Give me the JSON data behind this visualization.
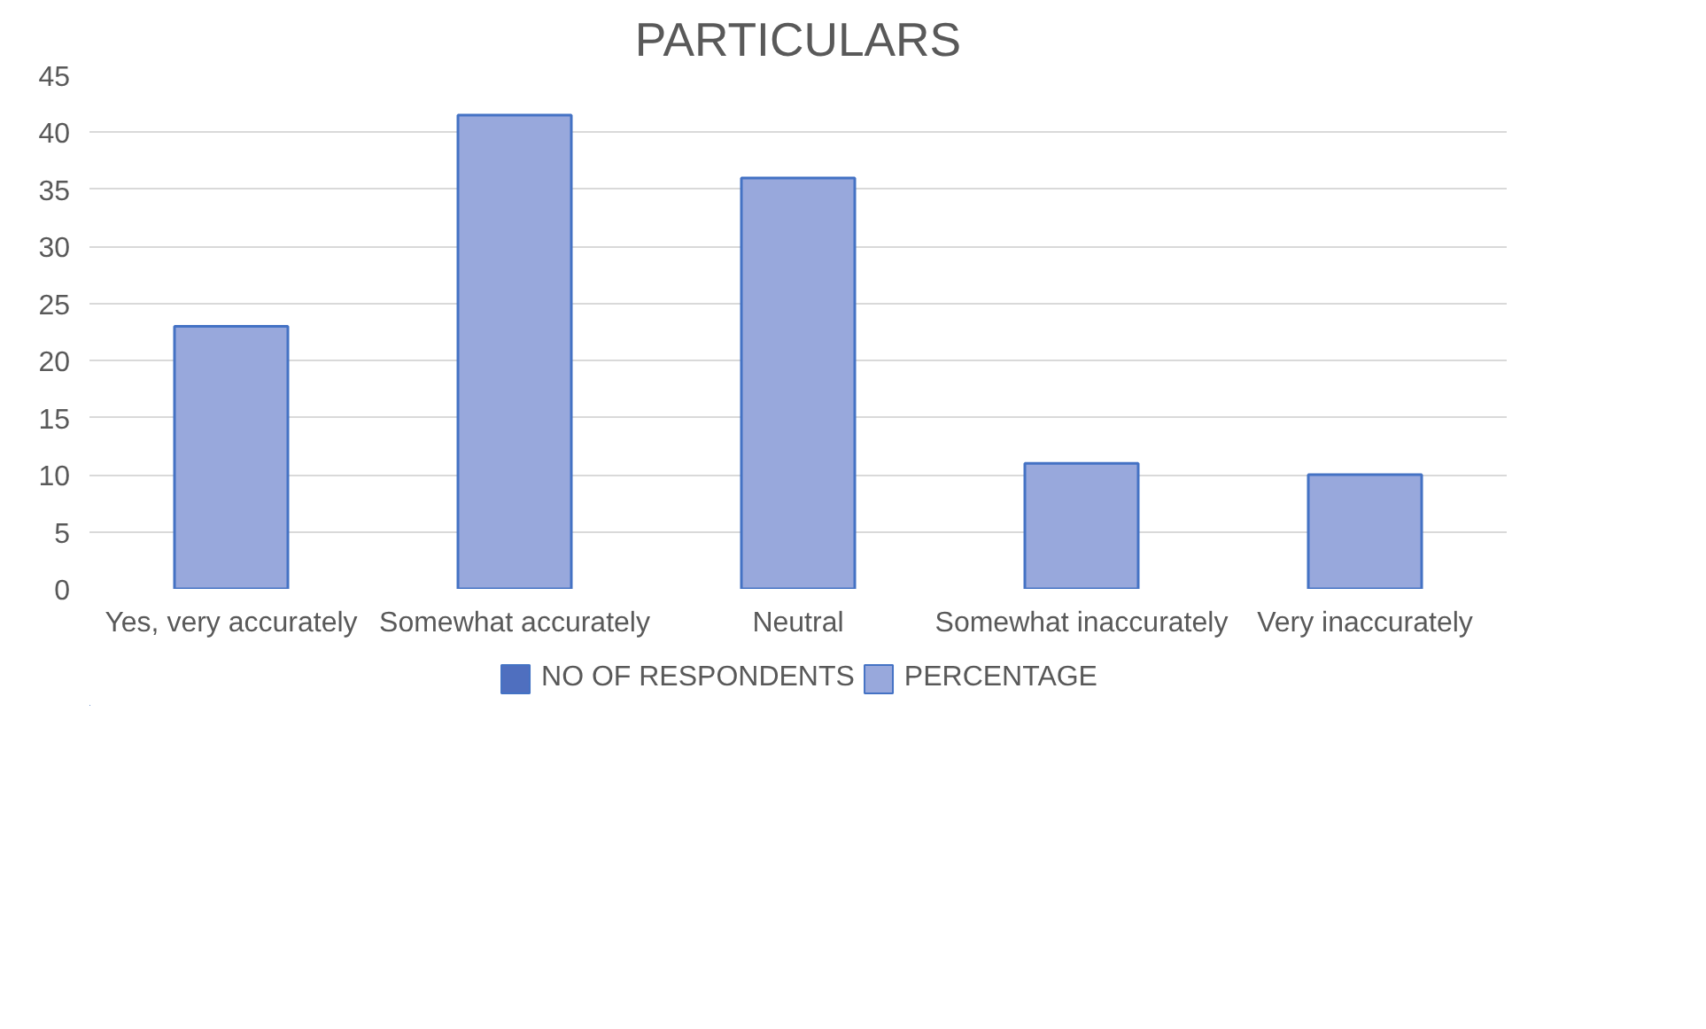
{
  "chart_data": {
    "type": "bar",
    "title": "PARTICULARS",
    "categories": [
      "Yes, very accurately",
      "Somewhat accurately",
      "Neutral",
      "Somewhat inaccurately",
      "Very inaccurately"
    ],
    "series": [
      {
        "name": "NO OF RESPONDENTS",
        "color": "#4f6fbf",
        "values": [
          null,
          null,
          null,
          null,
          null
        ]
      },
      {
        "name": "PERCENTAGE",
        "color": "#98a8dc",
        "values": [
          23,
          41.5,
          36,
          11,
          10
        ]
      }
    ],
    "ylim": [
      0,
      45
    ],
    "yticks": [
      0,
      5,
      10,
      15,
      20,
      25,
      30,
      35,
      40,
      45
    ],
    "grid": "y",
    "legend": "bottom"
  }
}
